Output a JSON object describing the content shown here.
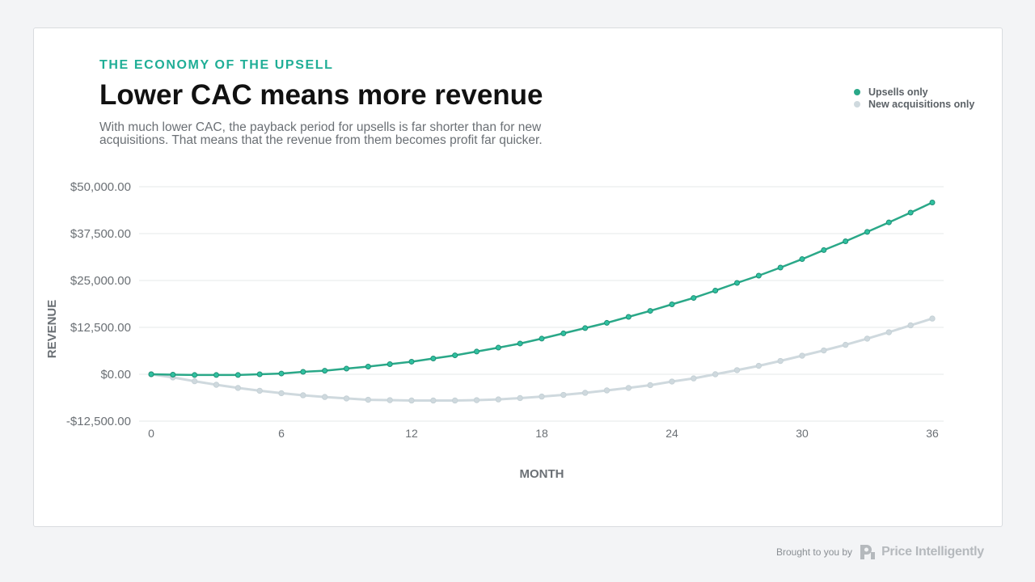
{
  "header": {
    "kicker": "THE ECONOMY OF THE UPSELL",
    "title": "Lower CAC means more revenue",
    "subtitle": "With much lower CAC, the payback period for upsells is far shorter than for new acquisitions. That means that the revenue from them becomes profit far quicker."
  },
  "footer": {
    "brought_by": "Brought to you by",
    "brand": "Price Intelligently"
  },
  "chart_data": {
    "type": "line",
    "xlabel": "MONTH",
    "ylabel": "REVENUE",
    "xlim": [
      0,
      36
    ],
    "ylim": [
      -12500,
      50000
    ],
    "x_ticks": [
      0,
      6,
      12,
      18,
      24,
      30,
      36
    ],
    "x_tick_labels": [
      "0",
      "6",
      "12",
      "18",
      "24",
      "30",
      "36"
    ],
    "y_ticks": [
      50000,
      37500,
      25000,
      12500,
      0,
      -12500
    ],
    "y_tick_labels": [
      "$50,000.00",
      "$37,500.00",
      "$25,000.00",
      "$12,500.00",
      "$0.00",
      "-$12,500.00"
    ],
    "grid": true,
    "legend_position": "top-right",
    "x": [
      0,
      1,
      2,
      3,
      4,
      5,
      6,
      7,
      8,
      9,
      10,
      11,
      12,
      13,
      14,
      15,
      16,
      17,
      18,
      19,
      20,
      21,
      22,
      23,
      24,
      25,
      26,
      27,
      28,
      29,
      30,
      31,
      32,
      33,
      34,
      35,
      36
    ],
    "series": [
      {
        "name": "Upsells only",
        "color": "#2aa888",
        "values": [
          0,
          -100,
          -200,
          -200,
          -200,
          0,
          200,
          650,
          950,
          1500,
          2050,
          2700,
          3350,
          4200,
          5050,
          6050,
          7100,
          8200,
          9500,
          10900,
          12300,
          13700,
          15300,
          16900,
          18650,
          20350,
          22300,
          24350,
          26300,
          28450,
          30700,
          33100,
          35450,
          37950,
          40500,
          43100,
          45800
        ]
      },
      {
        "name": "New acquisitions only",
        "color": "#cfd9de",
        "values": [
          0,
          -850,
          -1850,
          -2800,
          -3650,
          -4400,
          -5050,
          -5600,
          -6050,
          -6450,
          -6800,
          -6900,
          -7000,
          -7000,
          -7000,
          -6900,
          -6700,
          -6350,
          -5950,
          -5500,
          -4950,
          -4300,
          -3650,
          -2900,
          -1950,
          -1100,
          0,
          1100,
          2250,
          3550,
          4950,
          6350,
          7850,
          9500,
          11200,
          13050,
          14850
        ]
      }
    ]
  }
}
